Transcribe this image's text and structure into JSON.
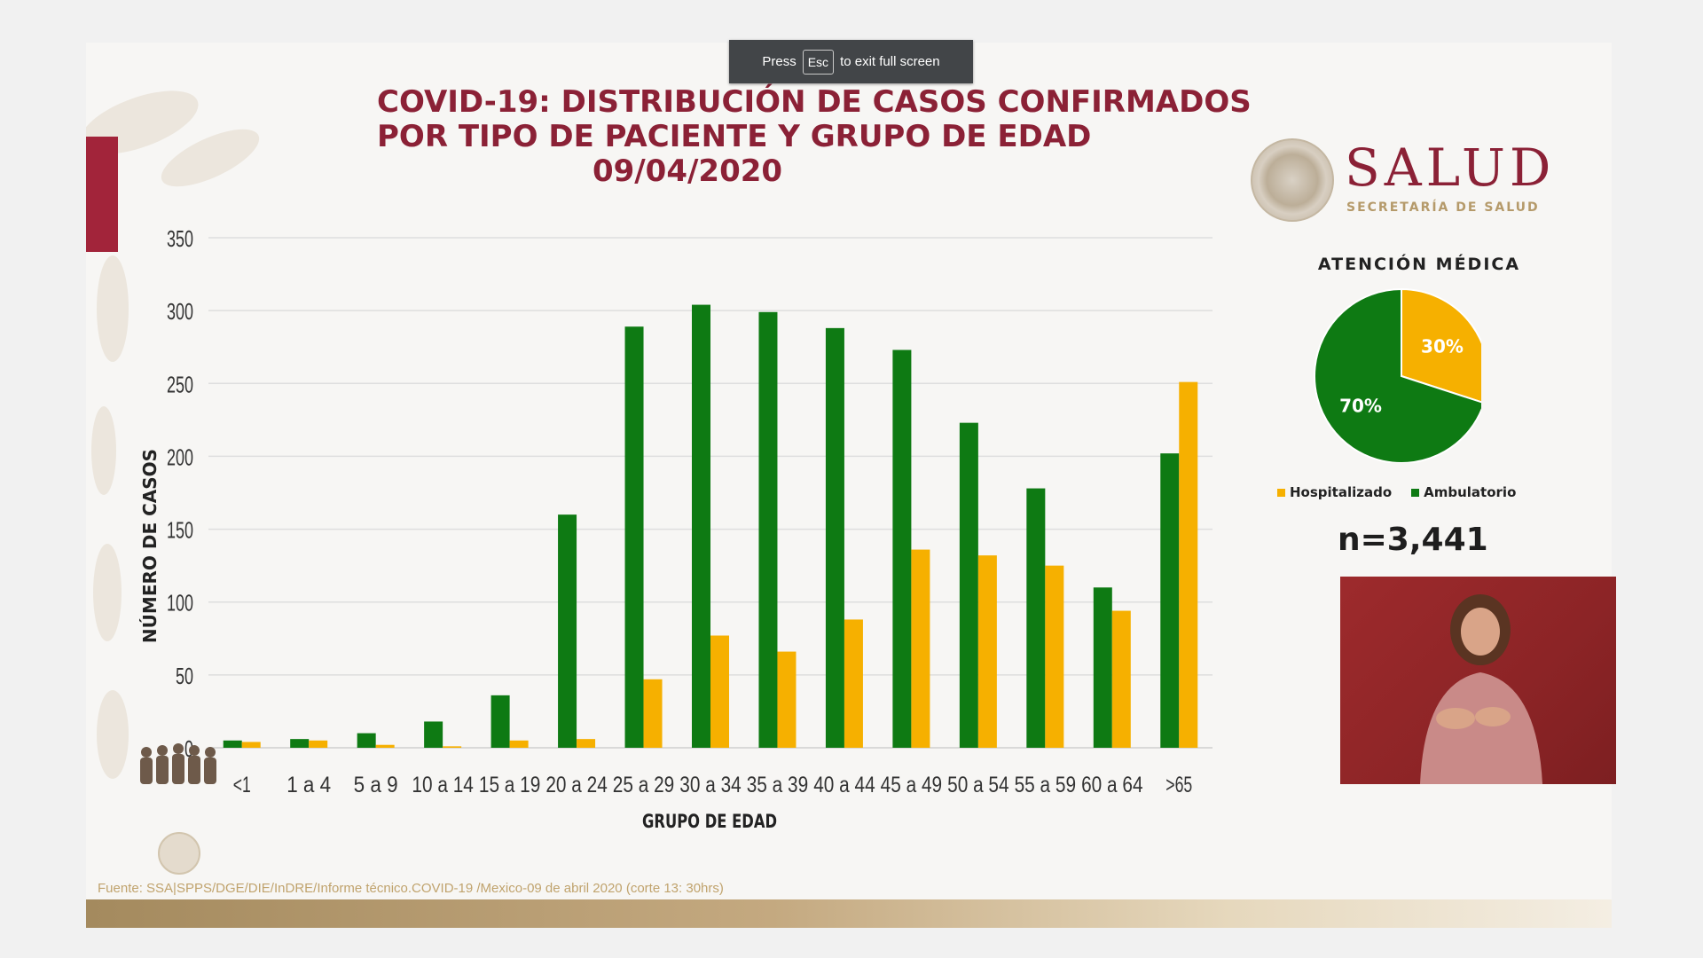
{
  "fullscreen_notice": {
    "press": "Press",
    "key": "Esc",
    "rest": "to exit full screen"
  },
  "title_lines": [
    "COVID-19: DISTRIBUCIÓN DE CASOS CONFIRMADOS",
    "POR TIPO DE PACIENTE Y GRUPO DE EDAD",
    "09/04/2020"
  ],
  "logo": {
    "word": "SALUD",
    "subtitle": "SECRETARÍA DE SALUD"
  },
  "colors": {
    "ambulatorio": "#0e7a13",
    "hospitalizado": "#f6b000",
    "brand_red": "#8b2136"
  },
  "chart_data": [
    {
      "type": "bar",
      "xlabel": "GRUPO DE EDAD",
      "ylabel": "NÚMERO DE CASOS",
      "ylim": [
        0,
        350
      ],
      "yticks": [
        0,
        50,
        100,
        150,
        200,
        250,
        300,
        350
      ],
      "grid": true,
      "categories": [
        "<1",
        "1 a 4",
        "5 a 9",
        "10 a 14",
        "15 a 19",
        "20 a 24",
        "25 a 29",
        "30 a 34",
        "35 a 39",
        "40 a 44",
        "45 a 49",
        "50 a 54",
        "55 a 59",
        "60 a 64",
        ">65"
      ],
      "series": [
        {
          "name": "Ambulatorio",
          "color": "#0e7a13",
          "values": [
            5,
            6,
            10,
            18,
            36,
            160,
            289,
            304,
            299,
            288,
            273,
            223,
            178,
            110,
            202
          ]
        },
        {
          "name": "Hospitalizado",
          "color": "#f6b000",
          "values": [
            4,
            5,
            2,
            1,
            5,
            6,
            47,
            77,
            66,
            88,
            136,
            132,
            125,
            94,
            251
          ]
        }
      ]
    },
    {
      "type": "pie",
      "title": "ATENCIÓN MÉDICA",
      "labels": [
        "Hospitalizado",
        "Ambulatorio"
      ],
      "values": [
        30,
        70
      ],
      "value_labels": [
        "30%",
        "70%"
      ],
      "colors": [
        "#f6b000",
        "#0e7a13"
      ],
      "legend_position": "bottom"
    }
  ],
  "n_label": "n=3,441",
  "source": "Fuente: SSA|SPPS/DGE/DIE/InDRE/Informe técnico.COVID-19 /Mexico-09 de abril 2020 (corte 13: 30hrs)"
}
